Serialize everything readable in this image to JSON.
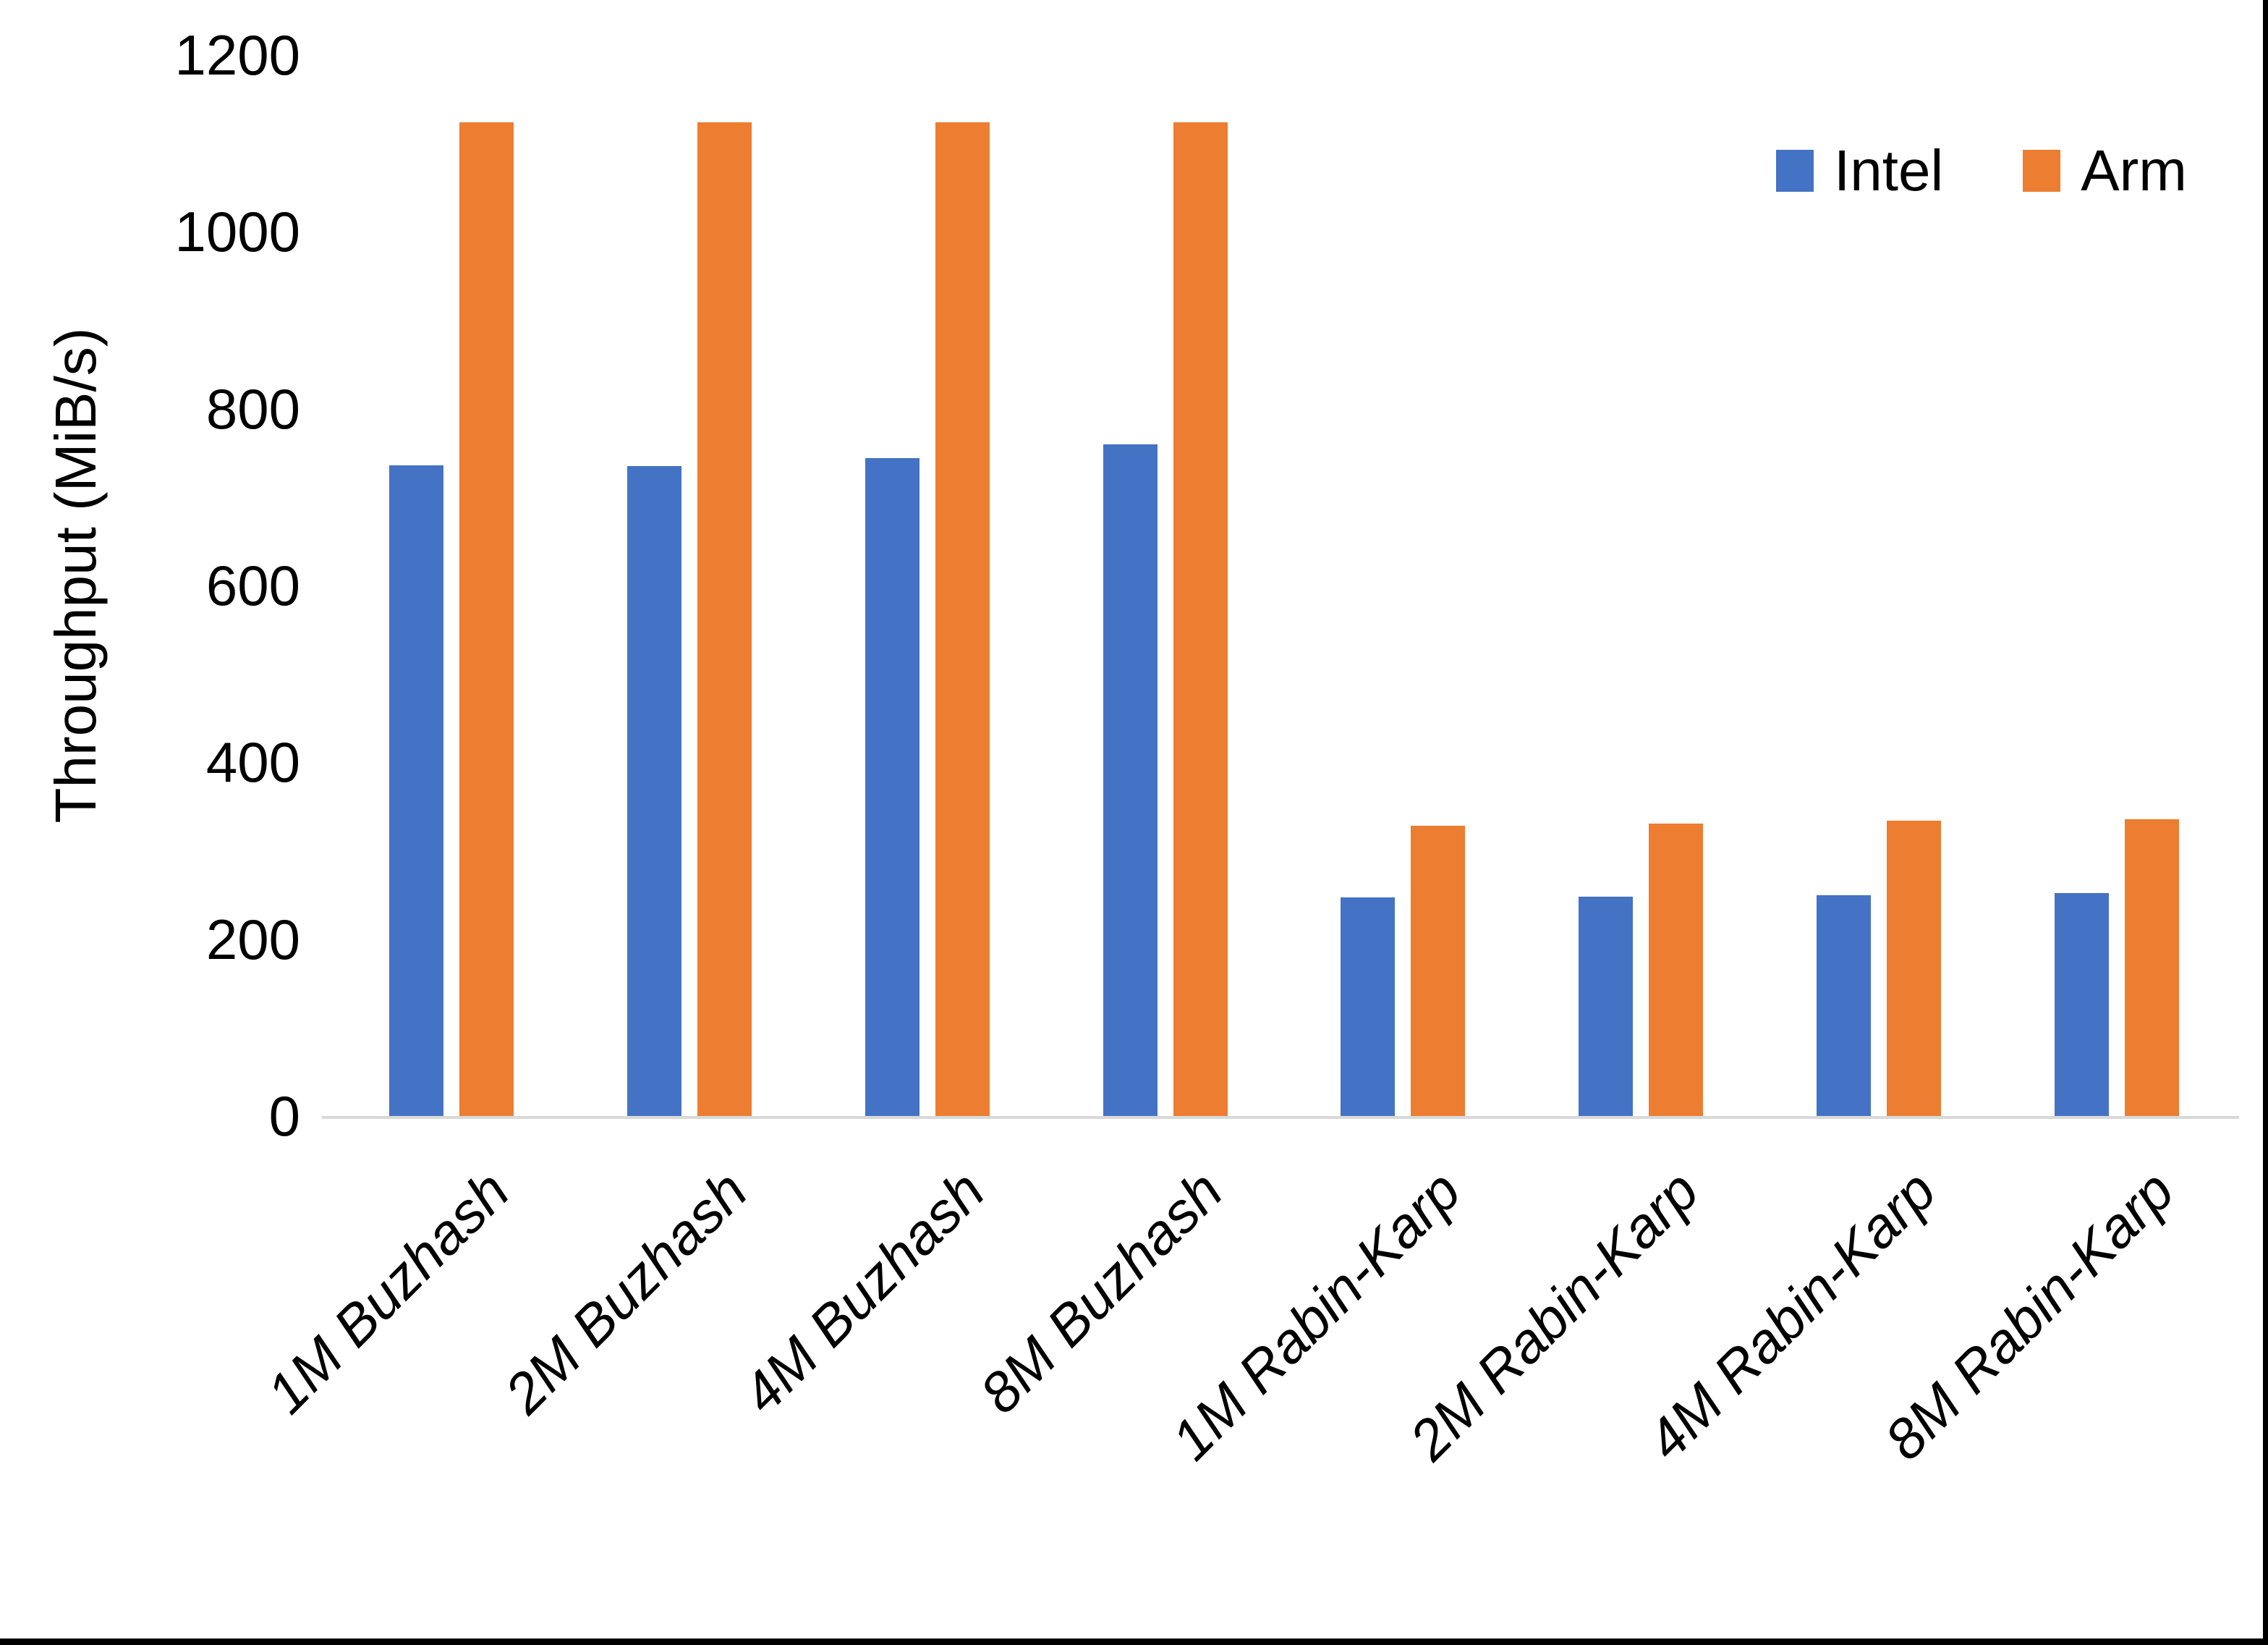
{
  "chart_data": {
    "type": "bar",
    "title": "",
    "xlabel": "",
    "ylabel": "Throughput (MiB/s)",
    "ylim": [
      0,
      1200
    ],
    "ytick_interval": 200,
    "yticks": [
      0,
      200,
      400,
      600,
      800,
      1000,
      1200
    ],
    "ytick_labels": [
      "0",
      "200",
      "400",
      "600",
      "800",
      "1000",
      "1200"
    ],
    "grid": false,
    "legend_position": "top-right",
    "categories": [
      "1M Buzhash",
      "2M Buzhash",
      "4M Buzhash",
      "8M Buzhash",
      "1M Rabin-Karp",
      "2M Rabin-Karp",
      "4M Rabin-Karp",
      "8M Rabin-Karp"
    ],
    "series": [
      {
        "name": "Intel",
        "color": "#4472C4",
        "values": [
          736,
          735,
          744,
          760,
          247,
          248,
          250,
          252
        ]
      },
      {
        "name": "Arm",
        "color": "#ED7D31",
        "values": [
          1124,
          1124,
          1124,
          1124,
          328,
          331,
          334,
          336
        ]
      }
    ]
  },
  "colors": {
    "background": "#FFFFFF",
    "axis_line": "#D9D9D9",
    "text": "#000000",
    "page_border": "#000000"
  }
}
